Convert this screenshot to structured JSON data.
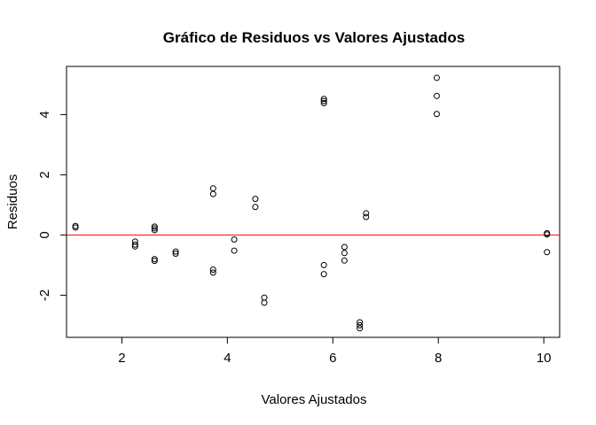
{
  "chart_data": {
    "type": "scatter",
    "title": "Gráfico de Residuos vs Valores Ajustados",
    "xlabel": "Valores Ajustados",
    "ylabel": "Residuos",
    "xlim": [
      0.95,
      10.3
    ],
    "ylim": [
      -3.4,
      5.6
    ],
    "x_ticks": [
      2,
      4,
      6,
      8,
      10
    ],
    "x_tick_labels": [
      "2",
      "4",
      "6",
      "8",
      "10"
    ],
    "y_ticks": [
      -2,
      0,
      2,
      4
    ],
    "y_tick_labels": [
      "-2",
      "0",
      "2",
      "4"
    ],
    "reference_line": {
      "y": 0,
      "color": "#ff0000"
    },
    "grid": false,
    "marker": "open-circle",
    "points": [
      {
        "x": 1.12,
        "y": 0.3
      },
      {
        "x": 1.12,
        "y": 0.25
      },
      {
        "x": 2.25,
        "y": -0.22
      },
      {
        "x": 2.25,
        "y": -0.32
      },
      {
        "x": 2.25,
        "y": -0.38
      },
      {
        "x": 2.62,
        "y": 0.28
      },
      {
        "x": 2.62,
        "y": 0.22
      },
      {
        "x": 2.62,
        "y": 0.16
      },
      {
        "x": 2.62,
        "y": -0.8
      },
      {
        "x": 2.62,
        "y": -0.86
      },
      {
        "x": 3.02,
        "y": -0.55
      },
      {
        "x": 3.02,
        "y": -0.62
      },
      {
        "x": 3.73,
        "y": 1.55
      },
      {
        "x": 3.73,
        "y": 1.36
      },
      {
        "x": 3.73,
        "y": -1.15
      },
      {
        "x": 3.73,
        "y": -1.25
      },
      {
        "x": 4.13,
        "y": -0.15
      },
      {
        "x": 4.13,
        "y": -0.52
      },
      {
        "x": 4.53,
        "y": 1.2
      },
      {
        "x": 4.53,
        "y": 0.93
      },
      {
        "x": 4.7,
        "y": -2.08
      },
      {
        "x": 4.7,
        "y": -2.25
      },
      {
        "x": 5.83,
        "y": 4.52
      },
      {
        "x": 5.83,
        "y": 4.45
      },
      {
        "x": 5.83,
        "y": 4.38
      },
      {
        "x": 5.83,
        "y": -1.0
      },
      {
        "x": 5.83,
        "y": -1.3
      },
      {
        "x": 6.22,
        "y": -0.4
      },
      {
        "x": 6.22,
        "y": -0.6
      },
      {
        "x": 6.22,
        "y": -0.85
      },
      {
        "x": 6.51,
        "y": -2.9
      },
      {
        "x": 6.51,
        "y": -3.0
      },
      {
        "x": 6.51,
        "y": -3.1
      },
      {
        "x": 6.63,
        "y": 0.72
      },
      {
        "x": 6.63,
        "y": 0.6
      },
      {
        "x": 7.97,
        "y": 5.22
      },
      {
        "x": 7.97,
        "y": 4.62
      },
      {
        "x": 7.97,
        "y": 4.02
      },
      {
        "x": 10.06,
        "y": 0.06
      },
      {
        "x": 10.06,
        "y": 0.02
      },
      {
        "x": 10.06,
        "y": -0.57
      }
    ]
  }
}
